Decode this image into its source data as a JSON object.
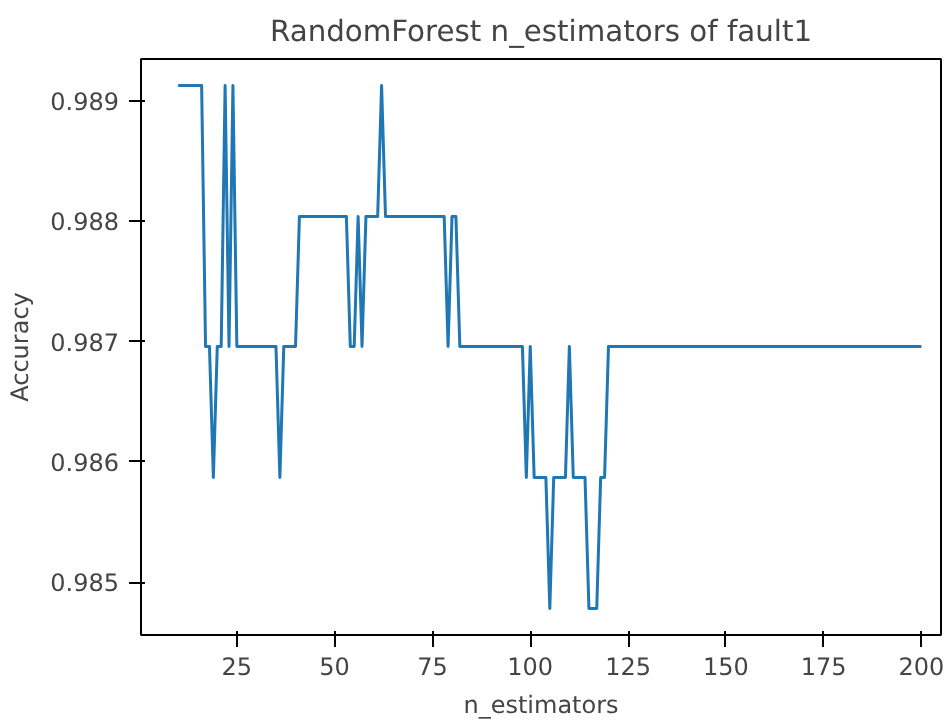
{
  "chart_data": {
    "type": "line",
    "title": "RandomForest n_estimators of fault1",
    "xlabel": "n_estimators",
    "ylabel": "Accuracy",
    "x": [
      10,
      16,
      17,
      18,
      19,
      20,
      21,
      22,
      23,
      24,
      25,
      35,
      36,
      37,
      40,
      41,
      53,
      54,
      55,
      56,
      57,
      58,
      61,
      62,
      63,
      78,
      79,
      80,
      81,
      82,
      98,
      99,
      100,
      101,
      104,
      105,
      106,
      109,
      110,
      111,
      114,
      115,
      117,
      118,
      119,
      120,
      200
    ],
    "series": [
      {
        "color": "#1f77b4",
        "values": [
          0.98913,
          0.98913,
          0.98696,
          0.98696,
          0.98587,
          0.98696,
          0.98696,
          0.98913,
          0.98696,
          0.98913,
          0.98696,
          0.98696,
          0.98587,
          0.98696,
          0.98696,
          0.98804,
          0.98804,
          0.98696,
          0.98696,
          0.98804,
          0.98696,
          0.98804,
          0.98804,
          0.98913,
          0.98804,
          0.98804,
          0.98696,
          0.98804,
          0.98804,
          0.98696,
          0.98696,
          0.98587,
          0.98696,
          0.98587,
          0.98587,
          0.98478,
          0.98587,
          0.98587,
          0.98696,
          0.98587,
          0.98587,
          0.98478,
          0.98478,
          0.98587,
          0.98587,
          0.98696,
          0.98696
        ]
      }
    ],
    "xlim": [
      0.5,
      205
    ],
    "ylim": [
      0.98456,
      0.98935
    ],
    "xticks": [
      25,
      50,
      75,
      100,
      125,
      150,
      175,
      200
    ],
    "yticks": [
      0.985,
      0.986,
      0.987,
      0.988,
      0.989
    ],
    "line_style": "solid"
  }
}
